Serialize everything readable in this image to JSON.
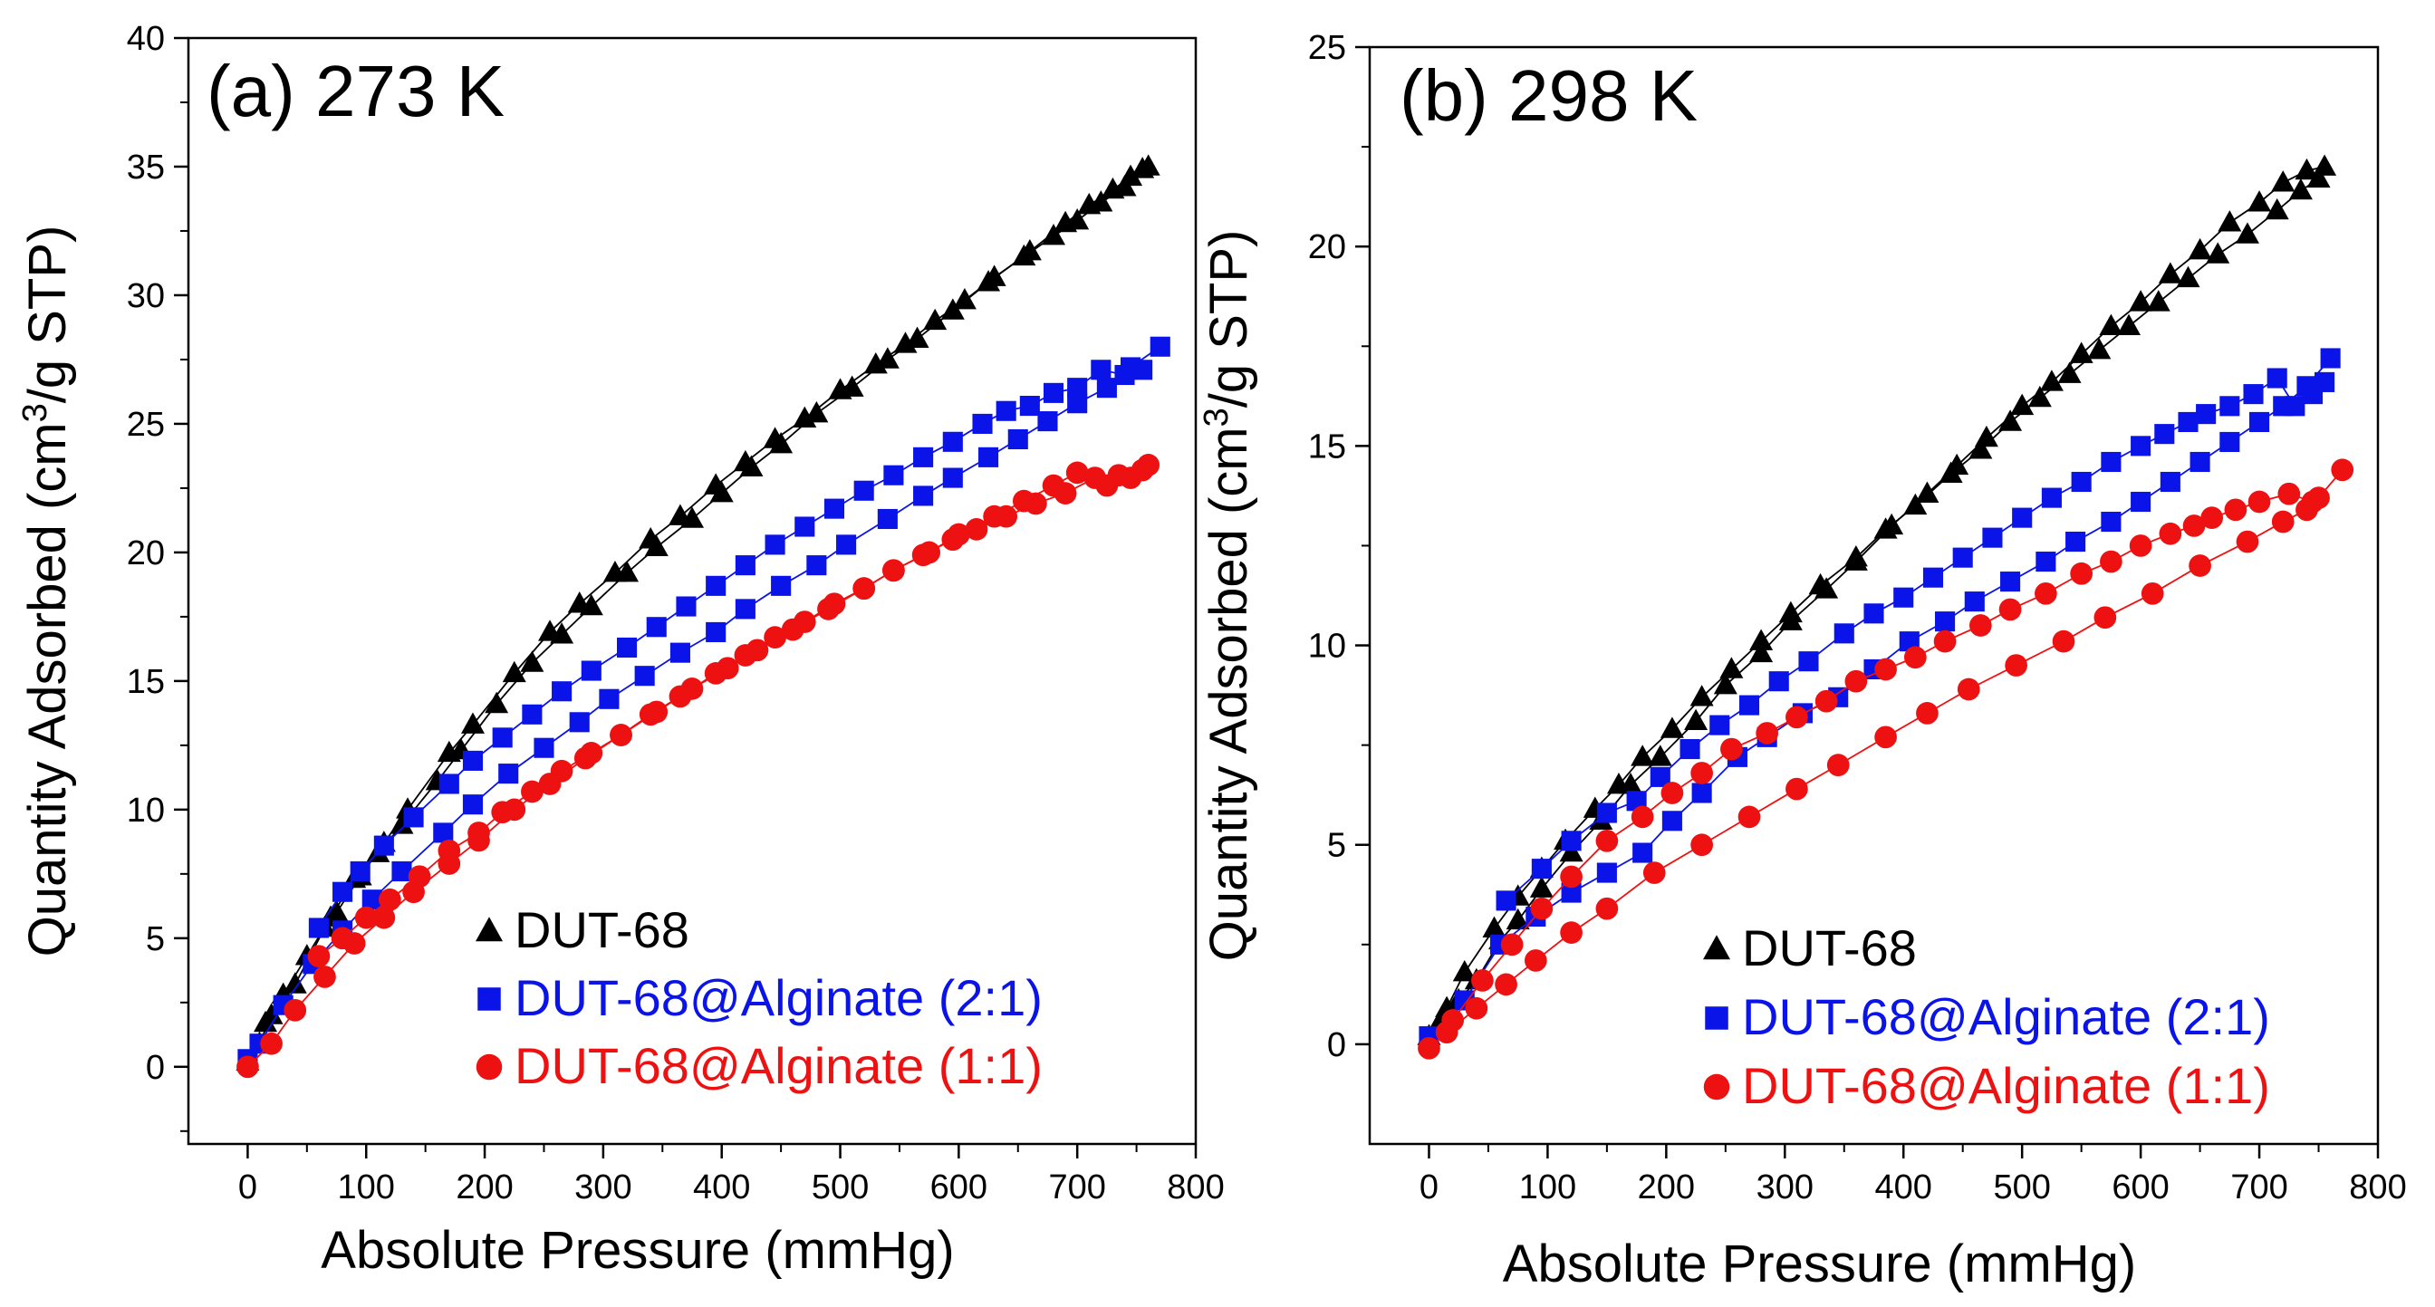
{
  "chart_data": [
    {
      "type": "scatter",
      "title": "(a) 273 K",
      "xlabel": "Absolute Pressure (mmHg)",
      "ylabel_main": "Quantity Adsorbed (cm",
      "ylabel_sup": "3",
      "ylabel_tail": "/g STP)",
      "xlim": [
        -50,
        800
      ],
      "ylim": [
        -3,
        40
      ],
      "xticks": [
        0,
        100,
        200,
        300,
        400,
        500,
        600,
        700,
        800
      ],
      "yticks": [
        0,
        5,
        10,
        15,
        20,
        25,
        30,
        35,
        40
      ],
      "legend_position": "bottom-right",
      "series": [
        {
          "name": "DUT-68",
          "color": "#000000",
          "marker": "triangle",
          "adsorption": {
            "x": [
              0,
              10,
              20,
              40,
              65,
              75,
              95,
              115,
              135,
              170,
              190,
              225,
              255,
              280,
              310,
              340,
              365,
              395,
              420,
              445,
              470,
              500,
              530,
              555,
              580,
              605,
              630,
              655,
              680,
              700,
              720,
              740,
              755
            ],
            "y": [
              0.2,
              0.9,
              2,
              3.2,
              5.4,
              6,
              7.4,
              8.7,
              10,
              12.2,
              13.3,
              15.3,
              16.9,
              18,
              19.2,
              20.5,
              21.4,
              22.6,
              23.5,
              24.4,
              25.2,
              26.3,
              27.3,
              28.1,
              29,
              29.8,
              30.7,
              31.5,
              32.3,
              32.9,
              33.6,
              34.2,
              34.9
            ]
          },
          "desorption": {
            "x": [
              760,
              745,
              730,
              710,
              690,
              660,
              625,
              595,
              565,
              540,
              510,
              480,
              450,
              425,
              400,
              375,
              345,
              320,
              290,
              265,
              240,
              210,
              180,
              160,
              130,
              110,
              90,
              70,
              50,
              30,
              15
            ],
            "y": [
              35,
              34.6,
              34.1,
              33.5,
              32.8,
              31.7,
              30.5,
              29.4,
              28.3,
              27.5,
              26.4,
              25.4,
              24.2,
              23.3,
              22.3,
              21.3,
              20.2,
              19.2,
              17.9,
              16.8,
              15.7,
              14.1,
              12.3,
              11.1,
              9.4,
              8.3,
              7.3,
              5.8,
              4.3,
              2.8,
              1.7
            ]
          }
        },
        {
          "name": "DUT-68@Alginate (2:1)",
          "color": "#0a14e8",
          "marker": "square",
          "adsorption": {
            "x": [
              0,
              10,
              30,
              55,
              80,
              105,
              130,
              165,
              190,
              220,
              250,
              280,
              305,
              335,
              365,
              395,
              420,
              450,
              480,
              505,
              540,
              570,
              595,
              625,
              650,
              675,
              700,
              725,
              745,
              770
            ],
            "y": [
              0.3,
              0.9,
              2.4,
              4,
              5.3,
              6.5,
              7.6,
              9.1,
              10.2,
              11.4,
              12.4,
              13.4,
              14.3,
              15.2,
              16.1,
              16.9,
              17.8,
              18.7,
              19.5,
              20.3,
              21.3,
              22.2,
              22.9,
              23.7,
              24.4,
              25.1,
              25.8,
              26.4,
              27.2,
              28
            ]
          },
          "desorption": {
            "x": [
              755,
              740,
              720,
              700,
              680,
              660,
              640,
              620,
              595,
              570,
              545,
              520,
              495,
              470,
              445,
              420,
              395,
              370,
              345,
              320,
              290,
              265,
              240,
              215,
              190,
              170,
              140,
              115,
              95,
              80,
              60
            ],
            "y": [
              27.1,
              26.9,
              27.1,
              26.4,
              26.2,
              25.7,
              25.5,
              25,
              24.3,
              23.7,
              23,
              22.4,
              21.7,
              21,
              20.3,
              19.5,
              18.7,
              17.9,
              17.1,
              16.3,
              15.4,
              14.6,
              13.7,
              12.8,
              11.9,
              11,
              9.7,
              8.6,
              7.6,
              6.8,
              5.4
            ]
          }
        },
        {
          "name": "DUT-68@Alginate (1:1)",
          "color": "#ee1111",
          "marker": "circle",
          "adsorption": {
            "x": [
              0,
              20,
              40,
              65,
              90,
              115,
              140,
              170,
              195,
              225,
              255,
              285,
              315,
              345,
              375,
              405,
              430,
              460,
              490,
              520,
              545,
              575,
              600,
              630,
              655,
              680,
              700,
              725,
              745,
              760
            ],
            "y": [
              0,
              0.9,
              2.2,
              3.5,
              4.8,
              5.8,
              6.8,
              7.9,
              8.8,
              10,
              11,
              12,
              12.9,
              13.8,
              14.7,
              15.5,
              16.2,
              17,
              17.8,
              18.6,
              19.3,
              20,
              20.7,
              21.4,
              22,
              22.6,
              23.1,
              22.6,
              22.9,
              23.4
            ]
          },
          "desorption": {
            "x": [
              755,
              735,
              715,
              690,
              665,
              640,
              615,
              595,
              570,
              545,
              520,
              495,
              470,
              445,
              420,
              395,
              365,
              340,
              315,
              290,
              265,
              240,
              215,
              195,
              170,
              145,
              120,
              100,
              80,
              60
            ],
            "y": [
              23.2,
              23,
              22.9,
              22.3,
              21.9,
              21.4,
              20.9,
              20.5,
              19.9,
              19.3,
              18.6,
              18,
              17.3,
              16.7,
              16,
              15.3,
              14.4,
              13.7,
              12.9,
              12.2,
              11.5,
              10.7,
              9.9,
              9.1,
              8.4,
              7.4,
              6.5,
              5.8,
              5,
              4.3
            ]
          }
        }
      ]
    },
    {
      "type": "scatter",
      "title": "(b) 298 K",
      "xlabel": "Absolute Pressure (mmHg)",
      "ylabel_main": "Quantity Adsorbed (cm",
      "ylabel_sup": "3",
      "ylabel_tail": "/g STP)",
      "xlim": [
        -50,
        800
      ],
      "ylim": [
        -2.5,
        25
      ],
      "xticks": [
        0,
        100,
        200,
        300,
        400,
        500,
        600,
        700,
        800
      ],
      "yticks": [
        0,
        5,
        10,
        15,
        20,
        25
      ],
      "legend_position": "bottom-right",
      "series": [
        {
          "name": "DUT-68",
          "color": "#000000",
          "marker": "triangle",
          "adsorption": {
            "x": [
              0,
              10,
              25,
              40,
              60,
              75,
              95,
              120,
              145,
              170,
              195,
              225,
              250,
              280,
              305,
              335,
              360,
              390,
              420,
              445,
              470,
              500,
              525,
              550,
              575,
              600,
              625,
              650,
              675,
              700,
              720,
              740,
              755
            ],
            "y": [
              0.2,
              0.6,
              1.1,
              1.6,
              2.6,
              3.1,
              3.9,
              4.8,
              5.6,
              6.5,
              7.2,
              8.1,
              9,
              9.8,
              10.6,
              11.4,
              12.1,
              13,
              13.8,
              14.5,
              15.2,
              16,
              16.6,
              17.3,
              18,
              18.6,
              19.3,
              19.9,
              20.6,
              21.1,
              21.6,
              21.9,
              22
            ]
          },
          "desorption": {
            "x": [
              750,
              735,
              715,
              690,
              665,
              640,
              615,
              590,
              565,
              540,
              515,
              490,
              465,
              440,
              410,
              385,
              360,
              330,
              305,
              280,
              255,
              230,
              205,
              180,
              160,
              140,
              115,
              95,
              75,
              55,
              30,
              15
            ],
            "y": [
              21.7,
              21.4,
              20.9,
              20.3,
              19.8,
              19.2,
              18.6,
              18,
              17.4,
              16.8,
              16.2,
              15.6,
              14.9,
              14.3,
              13.5,
              12.9,
              12.2,
              11.5,
              10.8,
              10.1,
              9.4,
              8.7,
              7.9,
              7.2,
              6.5,
              5.9,
              5.1,
              4.4,
              3.7,
              2.9,
              1.8,
              0.9
            ]
          }
        },
        {
          "name": "DUT-68@Alginate (2:1)",
          "color": "#0a14e8",
          "marker": "square",
          "adsorption": {
            "x": [
              0,
              30,
              60,
              90,
              120,
              150,
              180,
              205,
              230,
              260,
              285,
              315,
              345,
              375,
              405,
              435,
              460,
              490,
              520,
              545,
              575,
              600,
              625,
              650,
              675,
              700,
              720,
              740,
              760
            ],
            "y": [
              0.2,
              1.1,
              2.5,
              3.2,
              3.8,
              4.3,
              4.8,
              5.6,
              6.3,
              7.2,
              7.7,
              8.3,
              8.7,
              9.4,
              10.1,
              10.6,
              11.1,
              11.6,
              12.1,
              12.6,
              13.1,
              13.6,
              14.1,
              14.6,
              15.1,
              15.6,
              16,
              16.5,
              17.2
            ]
          },
          "desorption": {
            "x": [
              755,
              745,
              730,
              715,
              695,
              675,
              655,
              640,
              620,
              600,
              575,
              550,
              525,
              500,
              475,
              450,
              425,
              400,
              375,
              350,
              320,
              295,
              270,
              245,
              220,
              195,
              175,
              150,
              120,
              95,
              65
            ],
            "y": [
              16.6,
              16.3,
              16,
              16.7,
              16.3,
              16,
              15.8,
              15.6,
              15.3,
              15,
              14.6,
              14.1,
              13.7,
              13.2,
              12.7,
              12.2,
              11.7,
              11.2,
              10.8,
              10.3,
              9.6,
              9.1,
              8.5,
              8,
              7.4,
              6.7,
              6.1,
              5.8,
              5.1,
              4.4,
              3.6
            ]
          }
        },
        {
          "name": "DUT-68@Alginate (1:1)",
          "color": "#ee1111",
          "marker": "circle",
          "adsorption": {
            "x": [
              0,
              15,
              40,
              65,
              90,
              120,
              150,
              190,
              230,
              270,
              310,
              345,
              385,
              420,
              455,
              495,
              535,
              570,
              610,
              650,
              690,
              720,
              740,
              750,
              770
            ],
            "y": [
              -0.1,
              0.3,
              0.9,
              1.5,
              2.1,
              2.8,
              3.4,
              4.3,
              5,
              5.7,
              6.4,
              7,
              7.7,
              8.3,
              8.9,
              9.5,
              10.1,
              10.7,
              11.3,
              12,
              12.6,
              13.1,
              13.4,
              13.7,
              14.4
            ]
          },
          "desorption": {
            "x": [
              745,
              725,
              700,
              680,
              660,
              645,
              625,
              600,
              575,
              550,
              520,
              490,
              465,
              435,
              410,
              385,
              360,
              335,
              310,
              285,
              255,
              230,
              205,
              180,
              150,
              120,
              95,
              70,
              45,
              20
            ],
            "y": [
              13.6,
              13.8,
              13.6,
              13.4,
              13.2,
              13,
              12.8,
              12.5,
              12.1,
              11.8,
              11.3,
              10.9,
              10.5,
              10.1,
              9.7,
              9.4,
              9.1,
              8.6,
              8.2,
              7.8,
              7.4,
              6.8,
              6.3,
              5.7,
              5.1,
              4.2,
              3.4,
              2.5,
              1.6,
              0.6
            ]
          }
        }
      ]
    }
  ]
}
